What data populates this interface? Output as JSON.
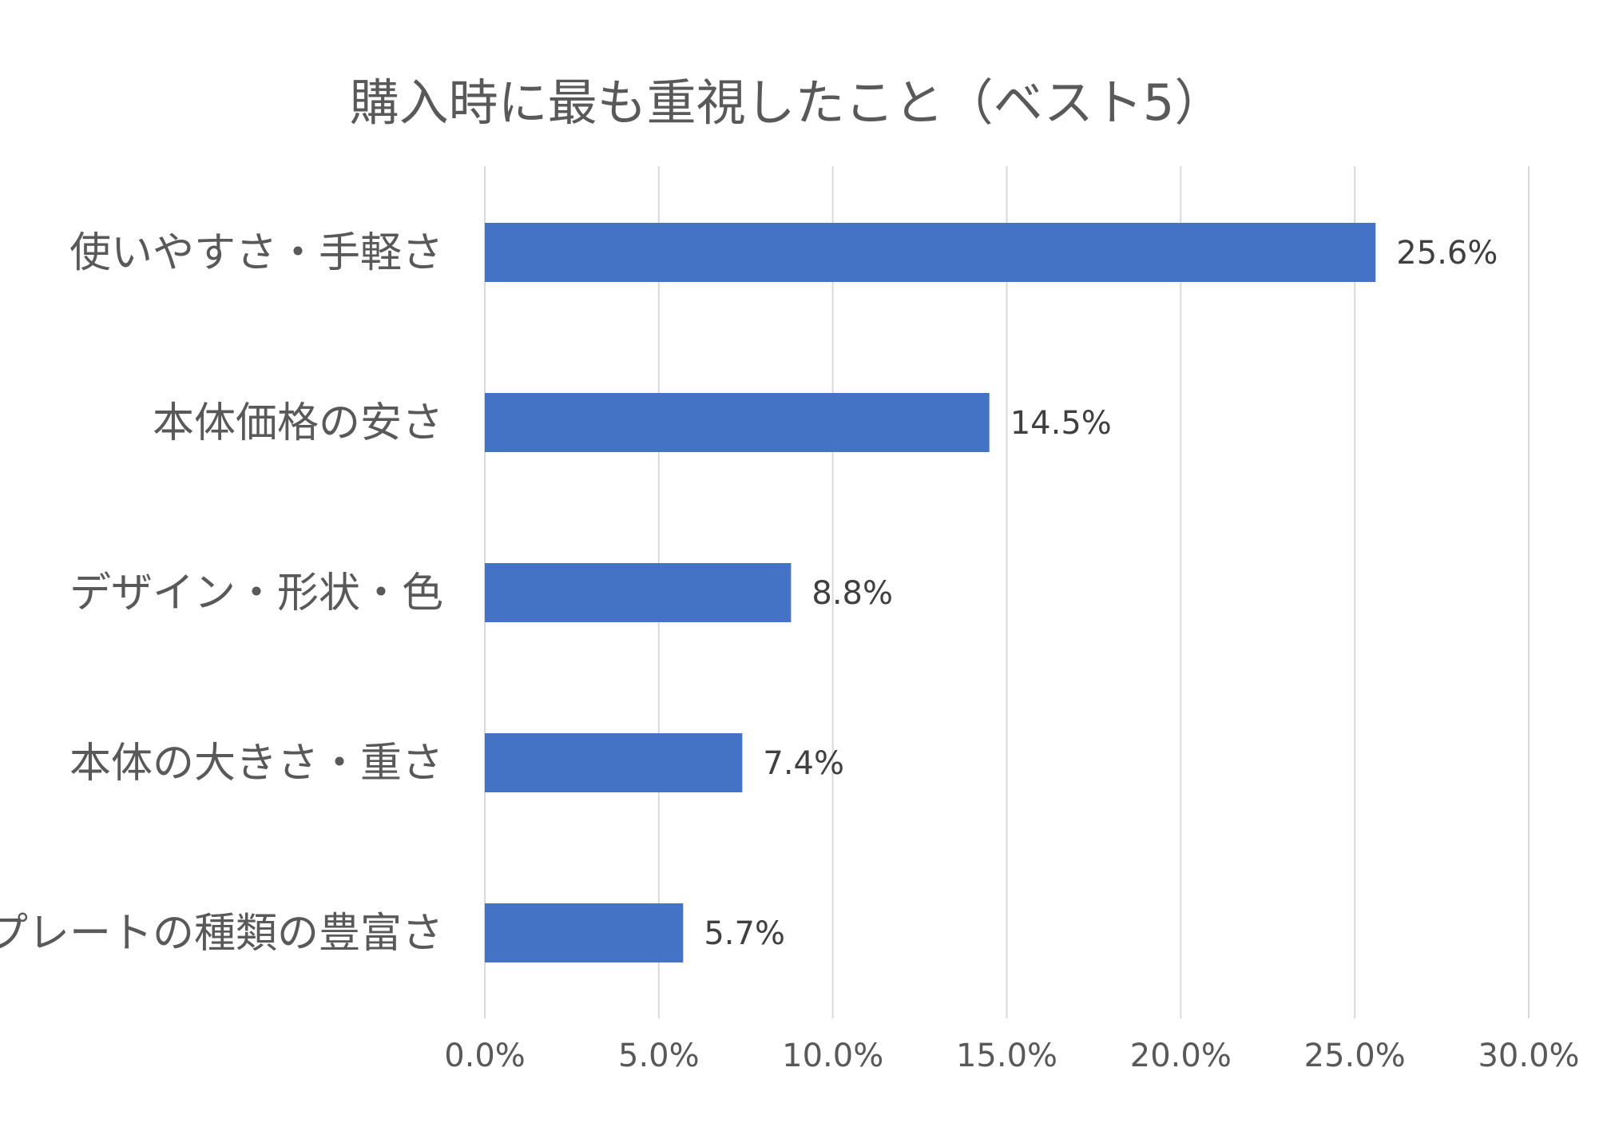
{
  "chart_data": {
    "type": "bar",
    "orientation": "horizontal",
    "title": "購入時に最も重視したこと（ベスト5）",
    "categories": [
      "使いやすさ・手軽さ",
      "本体価格の安さ",
      "デザイン・形状・色",
      "本体の大きさ・重さ",
      "プレートの種類の豊富さ"
    ],
    "values": [
      25.6,
      14.5,
      8.8,
      7.4,
      5.7
    ],
    "value_labels": [
      "25.6%",
      "14.5%",
      "8.8%",
      "7.4%",
      "5.7%"
    ],
    "xlim": [
      0,
      30
    ],
    "x_ticks": [
      0,
      5,
      10,
      15,
      20,
      25,
      30
    ],
    "x_tick_labels": [
      "0.0%",
      "5.0%",
      "10.0%",
      "15.0%",
      "20.0%",
      "25.0%",
      "30.0%"
    ],
    "grid": true,
    "legend": "none",
    "bar_color": "#4472C4",
    "grid_color": "#D9D9D9"
  }
}
